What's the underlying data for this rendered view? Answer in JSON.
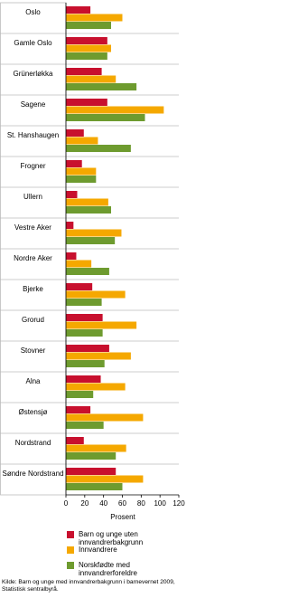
{
  "chart_data": {
    "type": "hbar",
    "categories": [
      "Oslo",
      "Gamle Oslo",
      "Grünerløkka",
      "Sagene",
      "St. Hanshaugen",
      "Frogner",
      "Ullern",
      "Vestre Aker",
      "Nordre Aker",
      "Bjerke",
      "Grorud",
      "Stovner",
      "Alna",
      "Østensjø",
      "Nordstrand",
      "Søndre Nordstrand"
    ],
    "series": [
      {
        "name": "Barn og unge uten innvandrerbakgrunn",
        "color": "#c8102e",
        "values": [
          26,
          44,
          38,
          44,
          19,
          17,
          12,
          8,
          11,
          28,
          39,
          46,
          37,
          26,
          19,
          53
        ]
      },
      {
        "name": "Innvandrere",
        "color": "#f5a800",
        "values": [
          60,
          48,
          53,
          104,
          34,
          32,
          45,
          59,
          27,
          63,
          75,
          69,
          63,
          82,
          64,
          82
        ]
      },
      {
        "name": "Norskfødte med innvandrerforeldre",
        "color": "#6e9b2f",
        "values": [
          48,
          44,
          75,
          84,
          69,
          32,
          48,
          52,
          46,
          38,
          39,
          41,
          29,
          40,
          53,
          60
        ]
      }
    ],
    "xlim": [
      0,
      120
    ],
    "xticks": [
      0,
      20,
      40,
      60,
      80,
      100,
      120
    ],
    "xlabel": "Prosent",
    "source": "Kilde: Barn og unge med innvandrerbakgrunn i barnevernet 2009, Statistisk sentralbyrå."
  }
}
